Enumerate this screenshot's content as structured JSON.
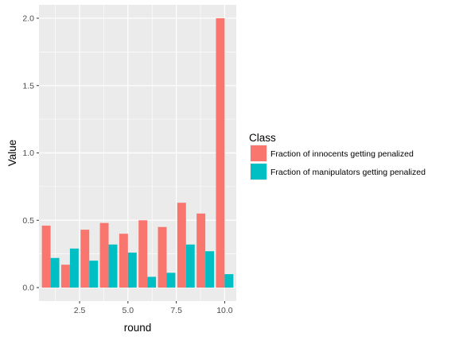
{
  "chart_data": {
    "type": "bar",
    "xlabel": "round",
    "ylabel": "Value",
    "x": [
      1,
      2,
      3,
      4,
      5,
      6,
      7,
      8,
      9,
      10
    ],
    "xlim": [
      0.4,
      10.6
    ],
    "ylim": [
      -0.1,
      2.1
    ],
    "xticks": [
      2.5,
      5.0,
      7.5,
      10.0
    ],
    "xtick_labels": [
      "2.5",
      "5.0",
      "7.5",
      "10.0"
    ],
    "yticks": [
      0.0,
      0.5,
      1.0,
      1.5,
      2.0
    ],
    "ytick_labels": [
      "0.0",
      "0.5",
      "1.0",
      "1.5",
      "2.0"
    ],
    "grid": true,
    "legend": {
      "title": "Class",
      "position": "right"
    },
    "series": [
      {
        "name": "Fraction of innocents getting penalized",
        "color": "#F8766D",
        "values": [
          0.46,
          0.17,
          0.43,
          0.48,
          0.4,
          0.5,
          0.45,
          0.63,
          0.55,
          2.0
        ]
      },
      {
        "name": "Fraction of manipulators getting penalized",
        "color": "#00BFC4",
        "values": [
          0.22,
          0.29,
          0.2,
          0.32,
          0.26,
          0.08,
          0.11,
          0.32,
          0.27,
          0.1
        ]
      }
    ]
  }
}
